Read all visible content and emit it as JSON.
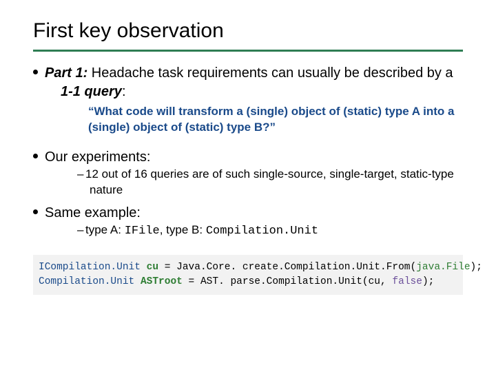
{
  "title": "First key observation",
  "rule_color": "#2e7d53",
  "bullets": {
    "part1_label": "Part 1:",
    "part1_text_a": " Headache task requirements can usually be described by a ",
    "part1_emph": "1-1 query",
    "part1_text_b": ":",
    "quote": "“What code will transform a (single) object of (static) type A into a (single) object of (static) type B?”",
    "experiments_label": "Our experiments:",
    "experiments_sub": "12 out of 16 queries are of such single-source, single-target, static-type nature",
    "same_example_label": "Same example:",
    "same_example_sub_a": "type A: ",
    "same_example_typeA": "IFile",
    "same_example_sub_b": ", type B: ",
    "same_example_typeB": "Compilation.Unit"
  },
  "code": {
    "line1": {
      "t1": "ICompilation.Unit ",
      "var": "cu",
      "t2": " = Java.Core. create.Compilation.Unit.From(",
      "arg": "java.File",
      "t3": ");"
    },
    "line2": {
      "t1": "Compilation.Unit ",
      "var": "ASTroot",
      "t2": " = AST. parse.Compilation.Unit(cu, ",
      "lit": "false",
      "t3": ");"
    },
    "bg_color": "#f2f2f2",
    "type_color": "#1a4a8a",
    "var_color": "#2e7d33",
    "lit_color": "#6b4f9a",
    "font_size": 14.5
  },
  "typography": {
    "title_fontsize": 30,
    "bullet_fontsize": 20,
    "sub_fontsize": 17,
    "quote_color": "#1a4a8a"
  }
}
